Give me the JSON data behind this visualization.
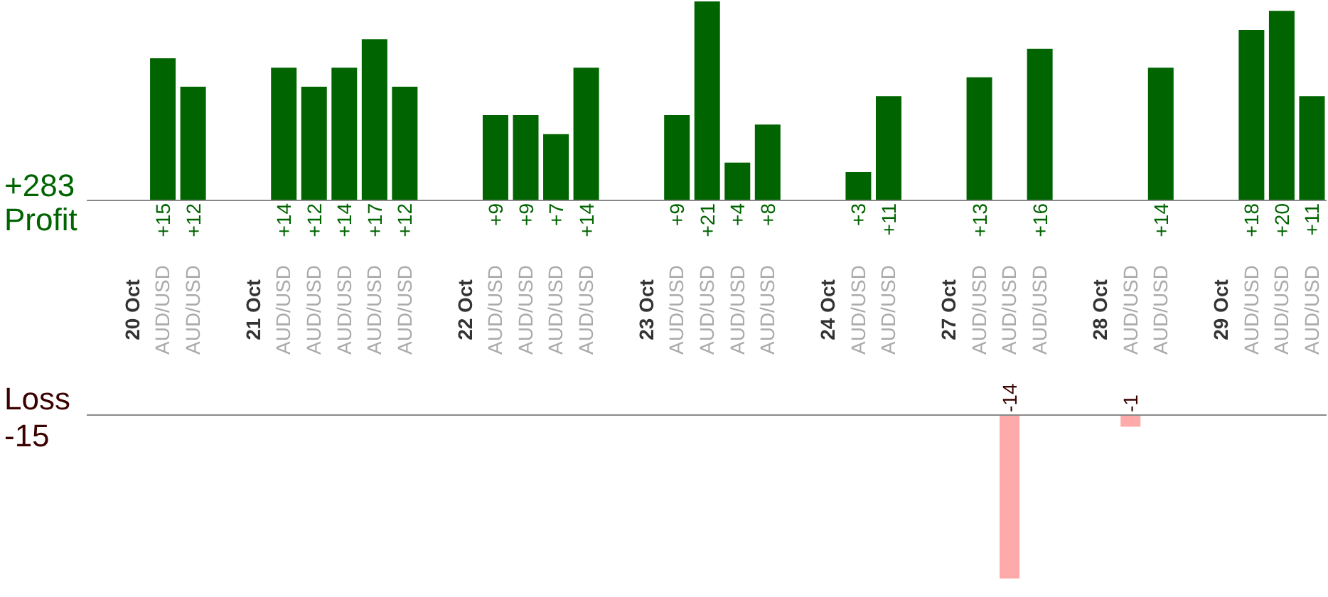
{
  "chart_data": [
    {
      "type": "bar",
      "ylabel": "Profit",
      "annotations": [
        "+283"
      ],
      "categories": [
        null,
        "20 Oct",
        "AUD/USD",
        "AUD/USD",
        null,
        "21 Oct",
        "AUD/USD",
        "AUD/USD",
        "AUD/USD",
        "AUD/USD",
        "AUD/USD",
        null,
        "22 Oct",
        "AUD/USD",
        "AUD/USD",
        "AUD/USD",
        "AUD/USD",
        null,
        "23 Oct",
        "AUD/USD",
        "AUD/USD",
        "AUD/USD",
        "AUD/USD",
        null,
        "24 Oct",
        "AUD/USD",
        "AUD/USD",
        null,
        "27 Oct",
        "AUD/USD",
        "AUD/USD",
        "AUD/USD",
        null,
        "28 Oct",
        "AUD/USD",
        "AUD/USD",
        null,
        "29 Oct",
        "AUD/USD",
        "AUD/USD",
        "AUD/USD"
      ],
      "values": [
        null,
        null,
        15,
        12,
        null,
        null,
        14,
        12,
        14,
        17,
        12,
        null,
        null,
        9,
        9,
        7,
        14,
        null,
        null,
        9,
        21,
        4,
        8,
        null,
        null,
        3,
        11,
        null,
        null,
        13,
        null,
        16,
        null,
        null,
        null,
        14,
        null,
        null,
        18,
        20,
        11
      ],
      "value_labels": [
        null,
        null,
        "+15",
        "+12",
        null,
        null,
        "+14",
        "+12",
        "+14",
        "+17",
        "+12",
        null,
        null,
        "+9",
        "+9",
        "+7",
        "+14",
        null,
        null,
        "+9",
        "+21",
        "+4",
        "+8",
        null,
        null,
        "+3",
        "+11",
        null,
        null,
        "+13",
        null,
        "+16",
        null,
        null,
        null,
        "+14",
        null,
        null,
        "+18",
        "+20",
        "+11"
      ],
      "color": "#006400",
      "ylim": [
        0,
        21
      ],
      "tick_labels": "x"
    },
    {
      "type": "bar",
      "ylabel": "Loss",
      "annotations": [
        "-15"
      ],
      "categories": [
        null,
        null,
        null,
        null,
        null,
        null,
        null,
        null,
        null,
        null,
        null,
        null,
        null,
        null,
        null,
        null,
        null,
        null,
        null,
        null,
        null,
        null,
        null,
        null,
        null,
        null,
        null,
        null,
        null,
        null,
        null,
        null,
        null,
        null,
        null,
        null,
        null,
        null,
        null,
        null,
        null
      ],
      "values": [
        null,
        null,
        null,
        null,
        null,
        null,
        null,
        null,
        null,
        null,
        null,
        null,
        null,
        null,
        null,
        null,
        null,
        null,
        null,
        null,
        null,
        null,
        null,
        null,
        null,
        null,
        null,
        null,
        null,
        null,
        -14,
        null,
        null,
        null,
        -1,
        null,
        null,
        null,
        null,
        null,
        null
      ],
      "data_labels": true,
      "color": "#ffaaaa",
      "ylim": [
        -14,
        0
      ],
      "tick_labels": false
    }
  ]
}
